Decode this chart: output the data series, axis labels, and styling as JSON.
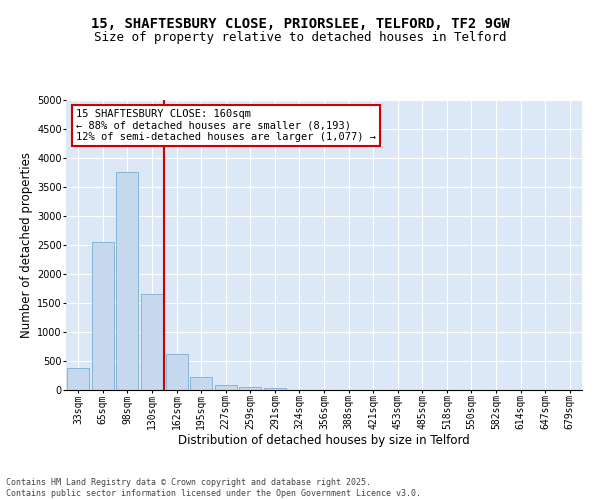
{
  "title1": "15, SHAFTESBURY CLOSE, PRIORSLEE, TELFORD, TF2 9GW",
  "title2": "Size of property relative to detached houses in Telford",
  "xlabel": "Distribution of detached houses by size in Telford",
  "ylabel": "Number of detached properties",
  "categories": [
    "33sqm",
    "65sqm",
    "98sqm",
    "130sqm",
    "162sqm",
    "195sqm",
    "227sqm",
    "259sqm",
    "291sqm",
    "324sqm",
    "356sqm",
    "388sqm",
    "421sqm",
    "453sqm",
    "485sqm",
    "518sqm",
    "550sqm",
    "582sqm",
    "614sqm",
    "647sqm",
    "679sqm"
  ],
  "values": [
    380,
    2550,
    3760,
    1650,
    620,
    230,
    90,
    45,
    35,
    0,
    0,
    0,
    0,
    0,
    0,
    0,
    0,
    0,
    0,
    0,
    0
  ],
  "bar_color": "#c5d8ee",
  "bar_edge_color": "#7aafd4",
  "vline_color": "#cc0000",
  "annotation_text": "15 SHAFTESBURY CLOSE: 160sqm\n← 88% of detached houses are smaller (8,193)\n12% of semi-detached houses are larger (1,077) →",
  "annotation_box_color": "#cc0000",
  "ylim": [
    0,
    5000
  ],
  "yticks": [
    0,
    500,
    1000,
    1500,
    2000,
    2500,
    3000,
    3500,
    4000,
    4500,
    5000
  ],
  "background_color": "#dce8f5",
  "grid_color": "#ffffff",
  "fig_background": "#ffffff",
  "footnote": "Contains HM Land Registry data © Crown copyright and database right 2025.\nContains public sector information licensed under the Open Government Licence v3.0.",
  "title_fontsize": 10,
  "subtitle_fontsize": 9,
  "axis_label_fontsize": 8.5,
  "tick_fontsize": 7,
  "annotation_fontsize": 7.5,
  "footnote_fontsize": 6
}
